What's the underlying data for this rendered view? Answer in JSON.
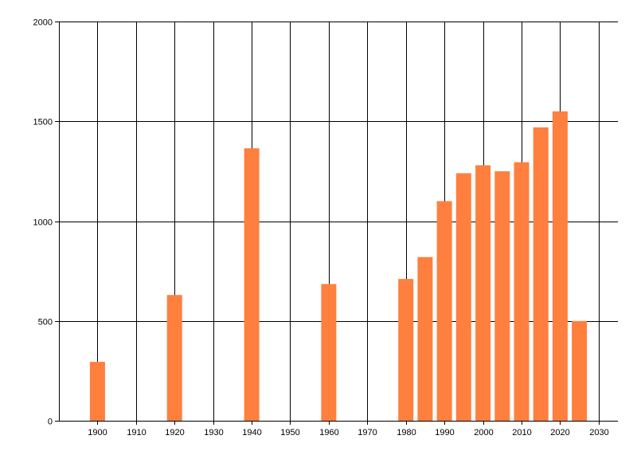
{
  "chart_data": {
    "type": "bar",
    "title": "",
    "xlabel": "",
    "ylabel": "",
    "x": [
      1900,
      1920,
      1940,
      1960,
      1980,
      1985,
      1990,
      1995,
      2000,
      2005,
      2010,
      2015,
      2020,
      2025
    ],
    "values": [
      295,
      630,
      1365,
      685,
      710,
      820,
      1100,
      1240,
      1280,
      1250,
      1295,
      1470,
      1550,
      500
    ],
    "xlim": [
      1890,
      2035
    ],
    "ylim": [
      0,
      2000
    ],
    "xticks": [
      1900,
      1910,
      1920,
      1930,
      1940,
      1950,
      1960,
      1970,
      1980,
      1990,
      2000,
      2010,
      2020,
      2030
    ],
    "yticks": [
      0,
      500,
      1000,
      1500,
      2000
    ],
    "xtick_labels": [
      "1900",
      "1910",
      "1920",
      "1930",
      "1940",
      "1950",
      "1960",
      "1970",
      "1980",
      "1990",
      "2000",
      "2010",
      "2020",
      "2030"
    ],
    "ytick_labels": [
      "0",
      "500",
      "1000",
      "1500",
      "2000"
    ],
    "bar_color": "#ff7f3f",
    "grid": true,
    "legend": "none"
  }
}
